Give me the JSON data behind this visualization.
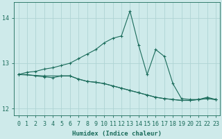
{
  "xlabel": "Humidex (Indice chaleur)",
  "x": [
    0,
    1,
    2,
    3,
    4,
    5,
    6,
    7,
    8,
    9,
    10,
    11,
    12,
    13,
    14,
    15,
    16,
    17,
    18,
    19,
    20,
    21,
    22,
    23
  ],
  "line1_x": [
    0,
    1,
    2,
    3,
    4,
    5,
    6,
    7,
    8,
    9,
    10,
    11,
    12,
    13,
    14,
    15,
    16,
    17,
    18,
    19,
    20,
    21,
    22,
    23
  ],
  "line1_y": [
    12.75,
    12.8,
    12.82,
    12.87,
    12.9,
    12.95,
    13.0,
    13.1,
    13.2,
    13.3,
    13.45,
    13.55,
    13.6,
    14.15,
    13.4,
    12.75,
    13.3,
    13.15,
    12.55,
    12.22,
    12.2,
    12.2,
    12.25,
    12.2
  ],
  "line2_x": [
    0,
    1,
    2,
    3,
    4,
    5,
    6,
    7,
    8,
    9,
    10,
    11,
    12,
    13,
    14,
    15,
    16,
    17,
    18,
    19,
    20,
    21,
    22,
    23
  ],
  "line2_y": [
    12.75,
    12.75,
    12.72,
    12.7,
    12.68,
    12.72,
    12.72,
    12.65,
    12.6,
    12.58,
    12.55,
    12.5,
    12.45,
    12.4,
    12.35,
    12.3,
    12.25,
    12.22,
    12.2,
    12.18,
    12.18,
    12.2,
    12.22,
    12.2
  ],
  "line3_x": [
    0,
    3,
    5,
    6,
    7,
    8,
    9,
    10,
    11,
    12,
    13,
    14,
    15,
    16,
    17,
    18,
    19,
    20,
    21,
    22,
    23
  ],
  "line3_y": [
    12.75,
    12.72,
    12.72,
    12.72,
    12.65,
    12.6,
    12.58,
    12.55,
    12.5,
    12.45,
    12.4,
    12.35,
    12.3,
    12.25,
    12.22,
    12.2,
    12.18,
    12.18,
    12.2,
    12.22,
    12.2
  ],
  "bg_color": "#ceeaea",
  "line_color": "#1a6b5a",
  "grid_color": "#aed4d4",
  "ylim": [
    11.85,
    14.35
  ],
  "yticks": [
    12,
    13,
    14
  ],
  "xlim": [
    -0.5,
    23.5
  ]
}
